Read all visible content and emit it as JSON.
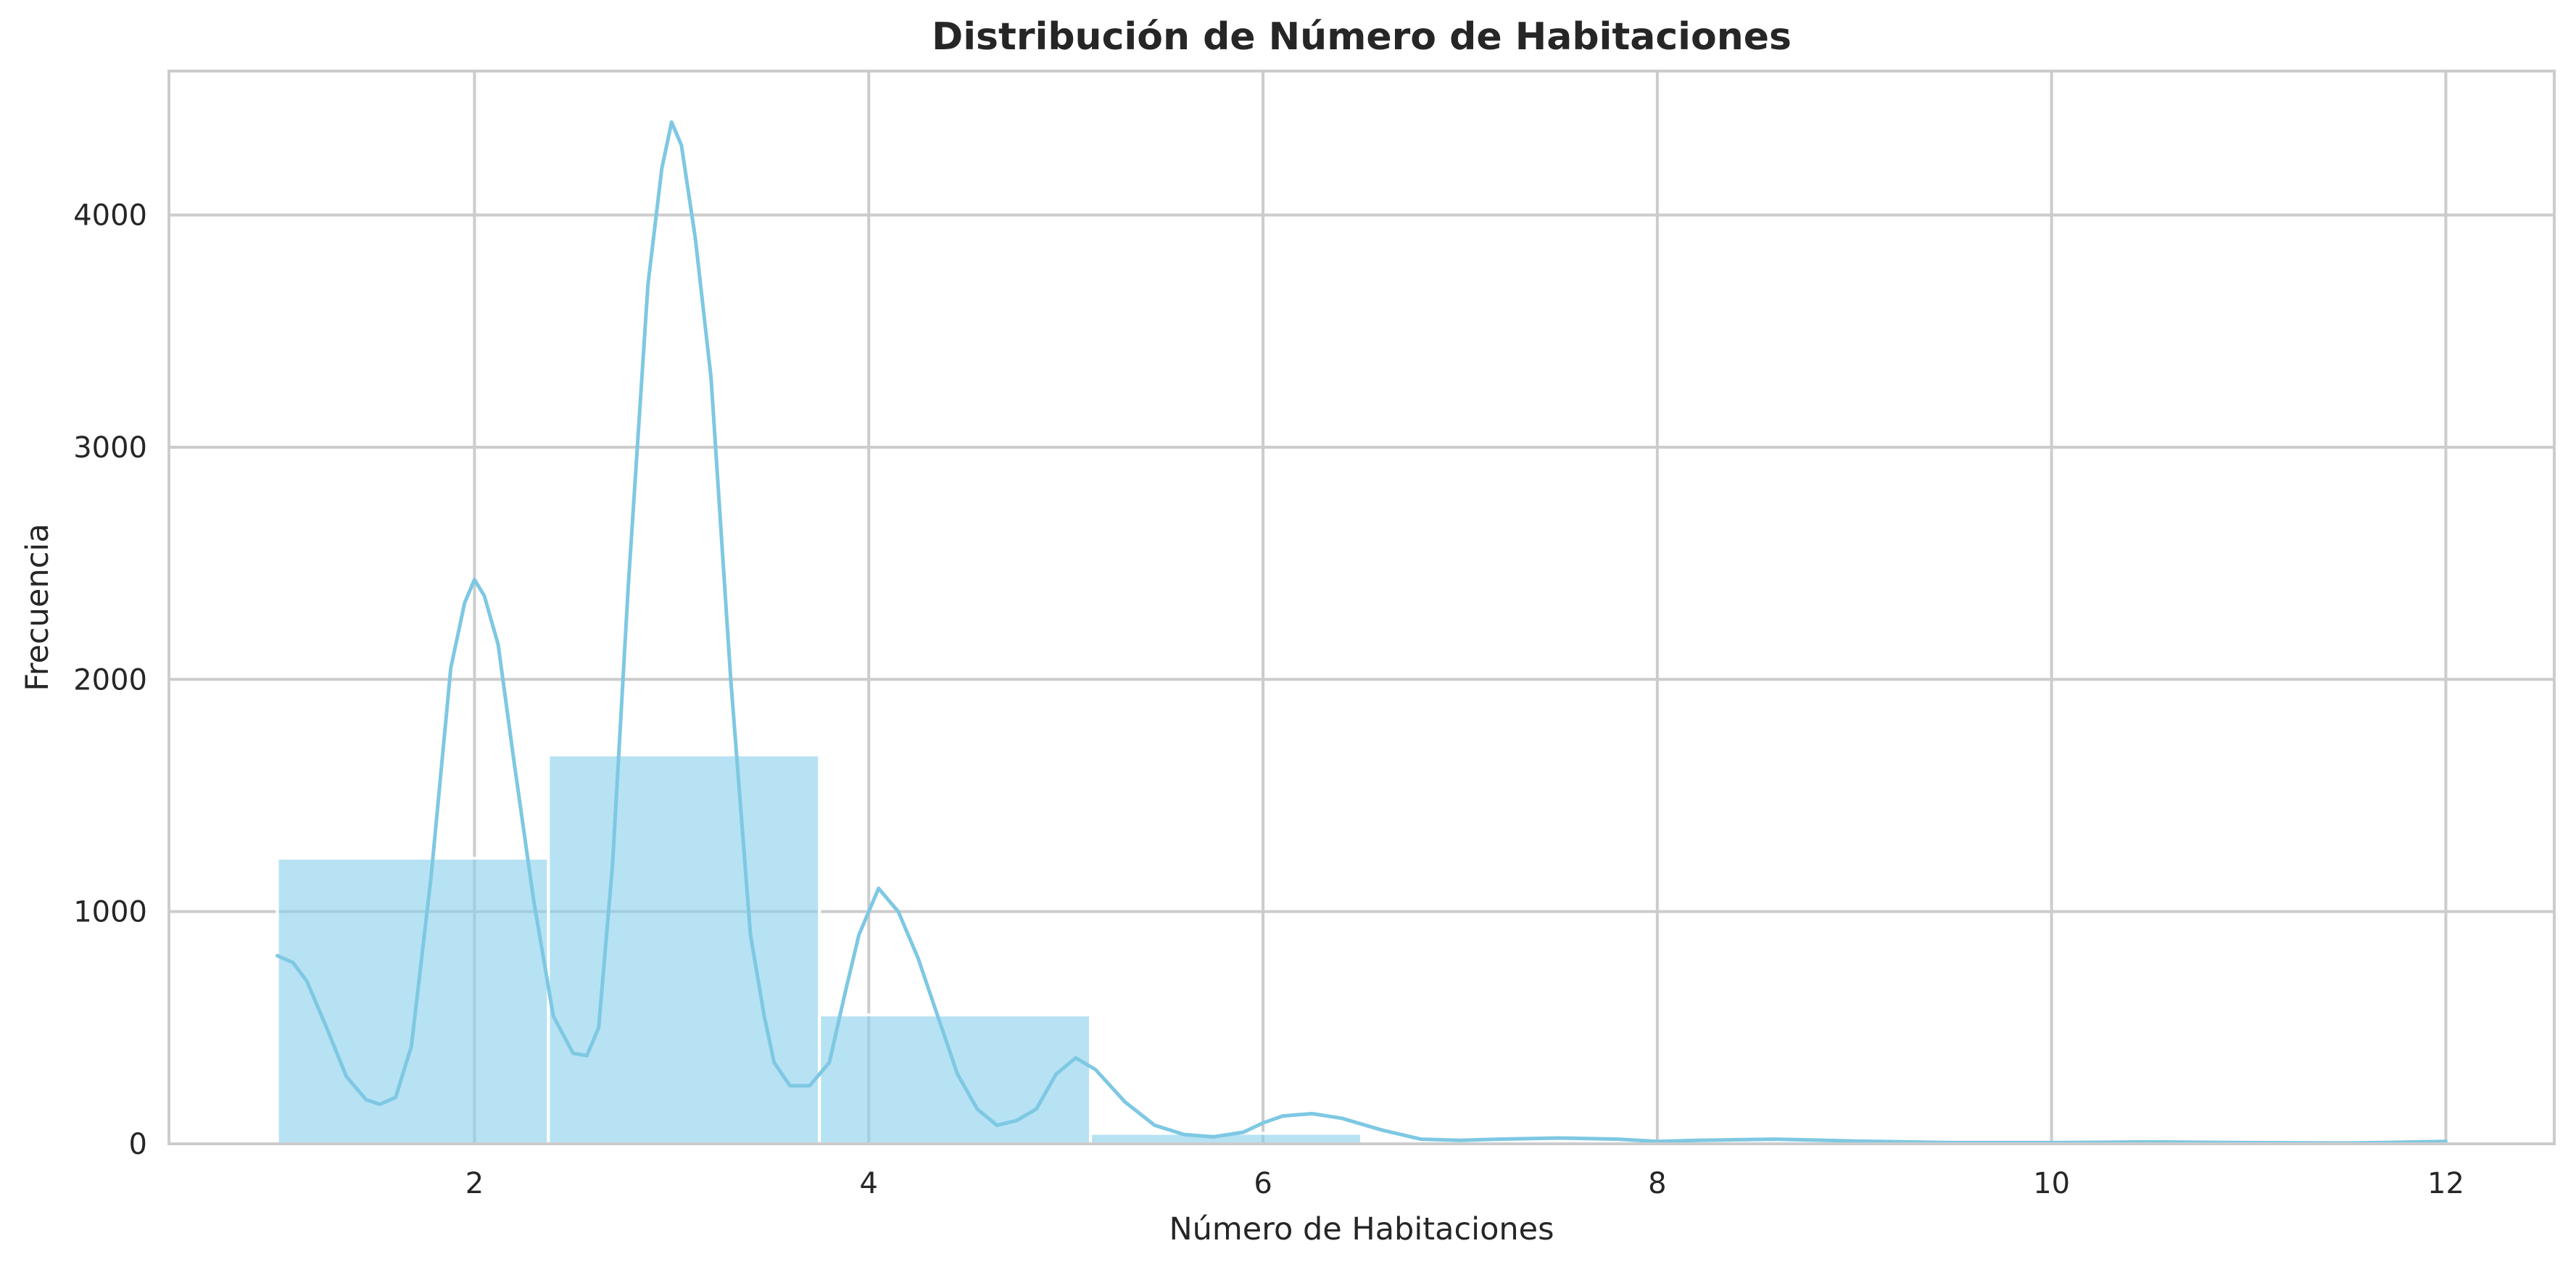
{
  "chart_data": {
    "type": "bar",
    "title": "Distribución de Número de Habitaciones",
    "xlabel": "Número de Habitaciones",
    "ylabel": "Frecuencia",
    "xlim": [
      0.45,
      12.55
    ],
    "ylim": [
      0,
      4620
    ],
    "x_ticks": [
      2,
      4,
      6,
      8,
      10,
      12
    ],
    "y_ticks": [
      0,
      1000,
      2000,
      3000,
      4000
    ],
    "grid": true,
    "bar_color": "#87ceeb",
    "kde_color": "#7ec8e3",
    "histogram": {
      "bins": [
        {
          "x0": 1.0,
          "x1": 2.375,
          "count": 1230
        },
        {
          "x0": 2.375,
          "x1": 3.75,
          "count": 1675
        },
        {
          "x0": 3.75,
          "x1": 5.125,
          "count": 555
        },
        {
          "x0": 5.125,
          "x1": 6.5,
          "count": 45
        },
        {
          "x0": 6.5,
          "x1": 7.875,
          "count": 4
        },
        {
          "x0": 7.875,
          "x1": 9.25,
          "count": 3
        },
        {
          "x0": 9.25,
          "x1": 10.625,
          "count": 2
        },
        {
          "x0": 10.625,
          "x1": 12.0,
          "count": 2
        }
      ]
    },
    "kde": {
      "x": [
        1.0,
        1.08,
        1.15,
        1.25,
        1.35,
        1.45,
        1.52,
        1.6,
        1.68,
        1.78,
        1.88,
        1.95,
        2.0,
        2.05,
        2.12,
        2.2,
        2.3,
        2.4,
        2.5,
        2.57,
        2.63,
        2.7,
        2.78,
        2.88,
        2.95,
        3.0,
        3.05,
        3.12,
        3.2,
        3.3,
        3.4,
        3.47,
        3.52,
        3.6,
        3.7,
        3.8,
        3.88,
        3.95,
        4.0,
        4.05,
        4.15,
        4.25,
        4.35,
        4.45,
        4.55,
        4.65,
        4.75,
        4.85,
        4.95,
        5.05,
        5.15,
        5.3,
        5.45,
        5.6,
        5.75,
        5.9,
        6.0,
        6.1,
        6.25,
        6.4,
        6.6,
        6.8,
        7.0,
        7.2,
        7.5,
        7.8,
        8.0,
        8.2,
        8.6,
        9.0,
        9.5,
        10.0,
        10.5,
        11.0,
        11.5,
        12.0
      ],
      "y": [
        810,
        780,
        700,
        500,
        290,
        190,
        170,
        200,
        420,
        1150,
        2050,
        2330,
        2430,
        2360,
        2150,
        1650,
        1050,
        550,
        390,
        380,
        500,
        1200,
        2400,
        3700,
        4200,
        4400,
        4300,
        3900,
        3300,
        2000,
        900,
        550,
        350,
        250,
        250,
        350,
        650,
        900,
        1000,
        1100,
        1000,
        800,
        550,
        300,
        150,
        80,
        100,
        150,
        300,
        370,
        320,
        180,
        80,
        40,
        30,
        50,
        90,
        120,
        130,
        110,
        60,
        20,
        15,
        20,
        25,
        20,
        10,
        15,
        20,
        12,
        5,
        5,
        8,
        5,
        3,
        10
      ]
    }
  }
}
